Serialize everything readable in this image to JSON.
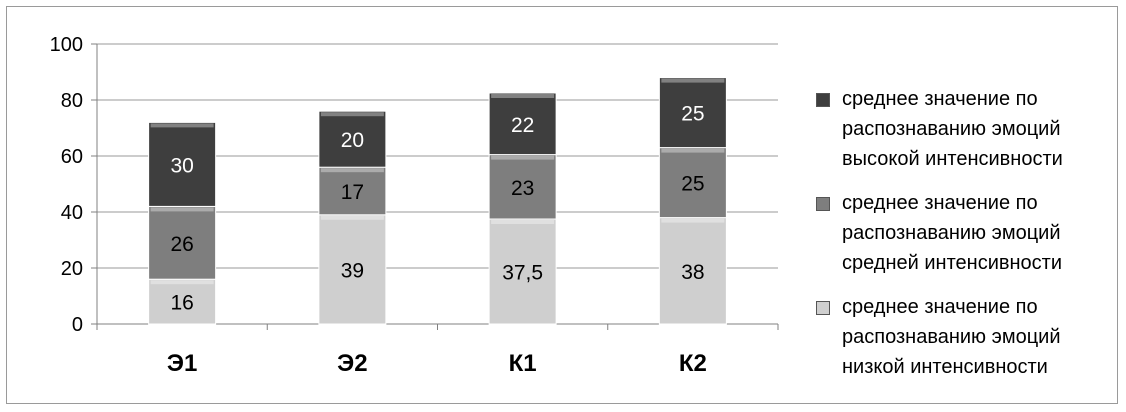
{
  "chart_data": {
    "type": "bar",
    "stacked": true,
    "categories": [
      "Э1",
      "Э2",
      "К1",
      "К2"
    ],
    "series": [
      {
        "name": "среднее значение по распознаванию эмоций низкой интенсивности",
        "values": [
          16,
          39,
          37.5,
          38
        ],
        "labels": [
          "16",
          "39",
          "37,5",
          "38"
        ],
        "color": "#cfcfcf"
      },
      {
        "name": "среднее значение по распознаванию эмоций средней интенсивности",
        "values": [
          26,
          17,
          23,
          25
        ],
        "labels": [
          "26",
          "17",
          "23",
          "25"
        ],
        "color": "#7e7e7e"
      },
      {
        "name": "среднее значение по распознаванию эмоций высокой интенсивности",
        "values": [
          30,
          20,
          22,
          25
        ],
        "labels": [
          "30",
          "20",
          "22",
          "25"
        ],
        "color": "#3e3e3e"
      }
    ],
    "ylim": [
      0,
      100
    ],
    "yticks": [
      0,
      20,
      40,
      60,
      80,
      100
    ],
    "ytick_labels": [
      "0",
      "20",
      "40",
      "60",
      "80",
      "100"
    ],
    "grid": true,
    "legend_position": "right",
    "title": "",
    "xlabel": "",
    "ylabel": ""
  }
}
